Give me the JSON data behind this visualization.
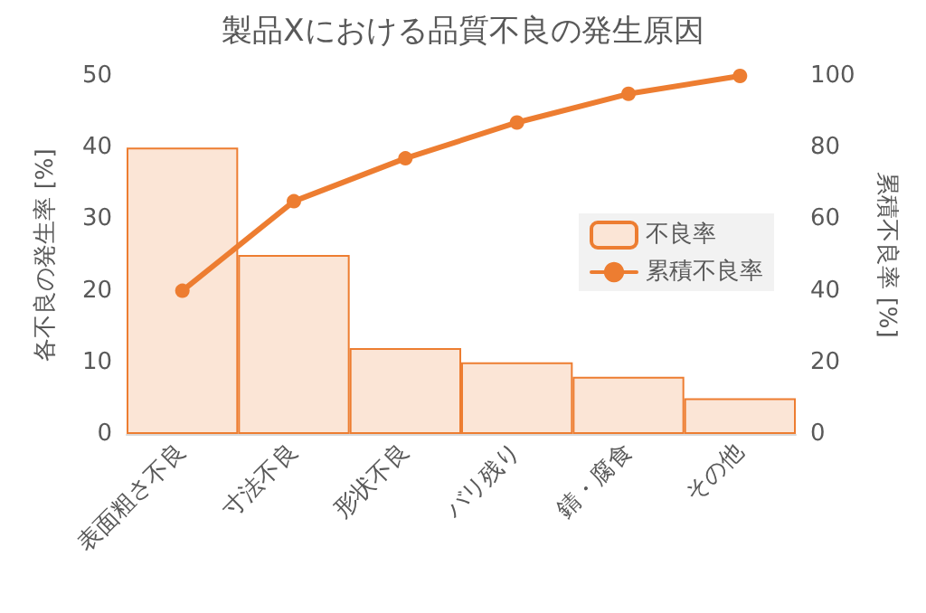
{
  "chart_data": {
    "type": "bar",
    "title": "製品Xにおける品質不良の発生原因",
    "ylabel": "各不良の発生率 [%]",
    "y2label": "累積不良率 [%]",
    "categories": [
      "表面粗さ不良",
      "寸法不良",
      "形状不良",
      "バリ残り",
      "錆・腐食",
      "その他"
    ],
    "series": [
      {
        "name": "不良率",
        "color": "#fbe5d6",
        "values": [
          40,
          25,
          12,
          10,
          8,
          5
        ]
      },
      {
        "name": "累積不良率",
        "type": "line",
        "axis": "y2",
        "color": "#ed7d31",
        "marker": "circle",
        "values": [
          40,
          65,
          77,
          87,
          95,
          100
        ]
      }
    ],
    "ylim": [
      0,
      50
    ],
    "yticks": [
      0,
      10,
      20,
      30,
      40,
      50
    ],
    "y2lim": [
      0,
      100
    ],
    "y2ticks": [
      0,
      20,
      40,
      60,
      80,
      100
    ],
    "grid": false,
    "legend": "right"
  }
}
